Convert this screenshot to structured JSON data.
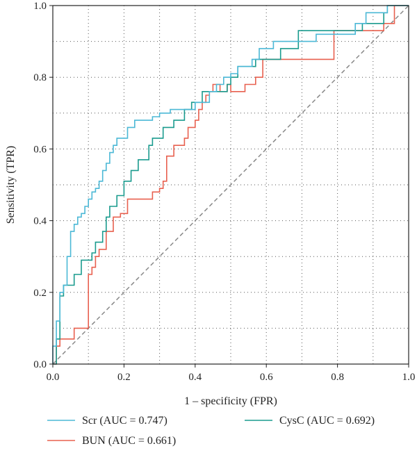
{
  "chart_data": {
    "type": "line",
    "xlabel": "1 – specificity (FPR)",
    "ylabel": "Sensitivity (TPR)",
    "xlim": [
      0,
      1
    ],
    "ylim": [
      0,
      1
    ],
    "x_ticks": [
      "0.0",
      "0.2",
      "0.4",
      "0.6",
      "0.8",
      "1.0"
    ],
    "y_ticks": [
      "0.0",
      "0.2",
      "0.4",
      "0.6",
      "0.8",
      "1.0"
    ],
    "grid": "dotted, minor and major",
    "legend_placement": "bottom, below plot",
    "reference_line": {
      "x": [
        0,
        1
      ],
      "y": [
        0,
        1
      ],
      "style": "dashed",
      "color": "#888888"
    },
    "series": [
      {
        "name": "Scr (AUC = 0.747)",
        "color": "#4bb8d6",
        "x": [
          0.0,
          0.0,
          0.01,
          0.01,
          0.02,
          0.02,
          0.03,
          0.03,
          0.04,
          0.04,
          0.05,
          0.05,
          0.06,
          0.06,
          0.07,
          0.07,
          0.08,
          0.08,
          0.09,
          0.09,
          0.1,
          0.1,
          0.11,
          0.11,
          0.12,
          0.12,
          0.13,
          0.13,
          0.14,
          0.14,
          0.15,
          0.15,
          0.16,
          0.16,
          0.17,
          0.17,
          0.18,
          0.18,
          0.19,
          0.19,
          0.21,
          0.21,
          0.23,
          0.23,
          0.25,
          0.25,
          0.28,
          0.28,
          0.3,
          0.3,
          0.33,
          0.33,
          0.37,
          0.37,
          0.4,
          0.4,
          0.44,
          0.44,
          0.46,
          0.46,
          0.48,
          0.48,
          0.5,
          0.5,
          0.52,
          0.52,
          0.56,
          0.56,
          0.58,
          0.58,
          0.62,
          0.62,
          0.74,
          0.74,
          0.85,
          0.85,
          0.88,
          0.88,
          0.94,
          0.94,
          1.0
        ],
        "y": [
          0.0,
          0.05,
          0.05,
          0.12,
          0.12,
          0.2,
          0.2,
          0.22,
          0.22,
          0.3,
          0.3,
          0.37,
          0.37,
          0.39,
          0.39,
          0.41,
          0.41,
          0.42,
          0.42,
          0.44,
          0.44,
          0.46,
          0.46,
          0.48,
          0.48,
          0.49,
          0.49,
          0.51,
          0.51,
          0.54,
          0.54,
          0.56,
          0.56,
          0.59,
          0.59,
          0.61,
          0.61,
          0.63,
          0.63,
          0.63,
          0.63,
          0.66,
          0.66,
          0.68,
          0.68,
          0.68,
          0.68,
          0.69,
          0.69,
          0.7,
          0.7,
          0.71,
          0.71,
          0.71,
          0.71,
          0.73,
          0.73,
          0.76,
          0.76,
          0.78,
          0.78,
          0.8,
          0.8,
          0.81,
          0.81,
          0.83,
          0.83,
          0.85,
          0.85,
          0.88,
          0.88,
          0.9,
          0.9,
          0.92,
          0.92,
          0.95,
          0.95,
          0.98,
          0.98,
          1.0,
          1.0
        ]
      },
      {
        "name": "BUN (AUC = 0.661)",
        "color": "#e8604f",
        "x": [
          0.0,
          0.01,
          0.01,
          0.02,
          0.02,
          0.06,
          0.06,
          0.1,
          0.1,
          0.1,
          0.11,
          0.11,
          0.12,
          0.12,
          0.13,
          0.13,
          0.15,
          0.15,
          0.17,
          0.17,
          0.19,
          0.19,
          0.21,
          0.21,
          0.25,
          0.25,
          0.28,
          0.28,
          0.3,
          0.3,
          0.31,
          0.31,
          0.32,
          0.32,
          0.34,
          0.34,
          0.37,
          0.37,
          0.38,
          0.38,
          0.4,
          0.4,
          0.41,
          0.41,
          0.42,
          0.42,
          0.43,
          0.43,
          0.44,
          0.44,
          0.45,
          0.45,
          0.47,
          0.47,
          0.49,
          0.49,
          0.5,
          0.5,
          0.54,
          0.54,
          0.57,
          0.57,
          0.59,
          0.59,
          0.79,
          0.79,
          0.88,
          0.88,
          0.93,
          0.93,
          0.96,
          0.96,
          1.0
        ],
        "y": [
          0.0,
          0.0,
          0.05,
          0.05,
          0.07,
          0.07,
          0.1,
          0.1,
          0.24,
          0.25,
          0.25,
          0.27,
          0.27,
          0.3,
          0.3,
          0.32,
          0.32,
          0.37,
          0.37,
          0.41,
          0.41,
          0.42,
          0.42,
          0.46,
          0.46,
          0.46,
          0.46,
          0.48,
          0.48,
          0.49,
          0.49,
          0.51,
          0.51,
          0.58,
          0.58,
          0.61,
          0.61,
          0.63,
          0.63,
          0.66,
          0.66,
          0.68,
          0.68,
          0.71,
          0.71,
          0.73,
          0.73,
          0.75,
          0.75,
          0.76,
          0.76,
          0.78,
          0.78,
          0.76,
          0.76,
          0.78,
          0.78,
          0.76,
          0.76,
          0.78,
          0.78,
          0.8,
          0.8,
          0.85,
          0.85,
          0.93,
          0.93,
          0.93,
          0.93,
          0.95,
          0.95,
          1.0,
          1.0
        ]
      },
      {
        "name": "CysC (AUC = 0.692)",
        "color": "#1a9b8e",
        "x": [
          0.0,
          0.01,
          0.01,
          0.02,
          0.02,
          0.03,
          0.03,
          0.06,
          0.06,
          0.08,
          0.08,
          0.11,
          0.11,
          0.12,
          0.12,
          0.14,
          0.14,
          0.15,
          0.15,
          0.16,
          0.16,
          0.18,
          0.18,
          0.2,
          0.2,
          0.22,
          0.22,
          0.24,
          0.24,
          0.27,
          0.27,
          0.28,
          0.28,
          0.31,
          0.31,
          0.34,
          0.34,
          0.37,
          0.37,
          0.39,
          0.39,
          0.42,
          0.42,
          0.44,
          0.44,
          0.49,
          0.49,
          0.5,
          0.5,
          0.52,
          0.52,
          0.55,
          0.55,
          0.57,
          0.57,
          0.64,
          0.64,
          0.69,
          0.69,
          0.79,
          0.79,
          0.87,
          0.87,
          0.93,
          0.93,
          0.94,
          0.94,
          1.0
        ],
        "y": [
          0.0,
          0.0,
          0.07,
          0.07,
          0.19,
          0.19,
          0.22,
          0.22,
          0.25,
          0.25,
          0.29,
          0.29,
          0.31,
          0.31,
          0.34,
          0.34,
          0.37,
          0.37,
          0.41,
          0.41,
          0.44,
          0.44,
          0.47,
          0.47,
          0.51,
          0.51,
          0.54,
          0.54,
          0.57,
          0.57,
          0.61,
          0.61,
          0.63,
          0.63,
          0.66,
          0.66,
          0.68,
          0.68,
          0.71,
          0.71,
          0.73,
          0.73,
          0.76,
          0.76,
          0.76,
          0.76,
          0.78,
          0.78,
          0.8,
          0.8,
          0.83,
          0.83,
          0.83,
          0.83,
          0.85,
          0.85,
          0.88,
          0.88,
          0.93,
          0.93,
          0.93,
          0.93,
          0.95,
          0.95,
          0.98,
          0.98,
          1.0,
          1.0
        ]
      }
    ]
  }
}
